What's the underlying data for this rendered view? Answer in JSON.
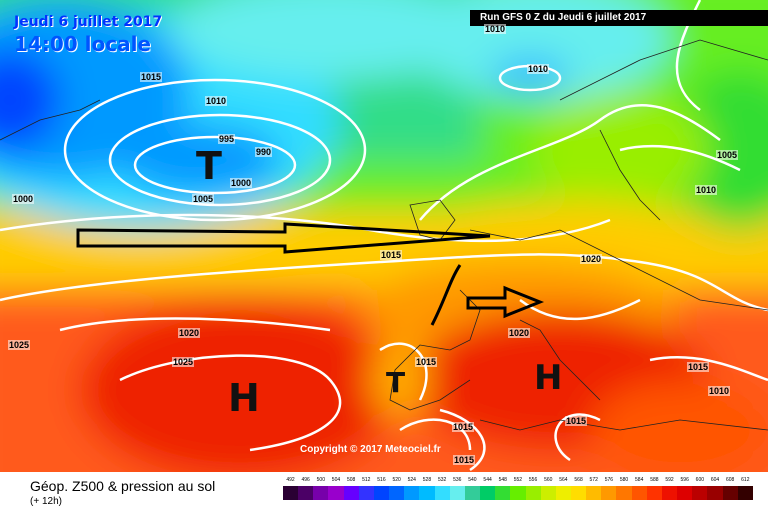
{
  "header": {
    "date": "Jeudi 6 juillet 2017",
    "time": "14:00 locale",
    "run": "Run GFS 0 Z du Jeudi 6 juillet 2017"
  },
  "map": {
    "copyright": "Copyright © 2017 Meteociel.fr",
    "isobars": [
      "1010",
      "1015",
      "1010",
      "995",
      "990",
      "1000",
      "1005",
      "1000",
      "1010",
      "1005",
      "1010",
      "1015",
      "1020",
      "1020",
      "1025",
      "1025",
      "1015",
      "1015",
      "1020",
      "1015",
      "1015",
      "1010",
      "1015"
    ],
    "symbols": {
      "low_1": "T",
      "low_2": "T",
      "high_1": "H",
      "high_2": "H"
    }
  },
  "legend": {
    "title": "Géop. Z500 & pression au sol",
    "subtitle": "(+ 12h)",
    "scale": [
      "492",
      "496",
      "500",
      "504",
      "508",
      "512",
      "516",
      "520",
      "524",
      "528",
      "532",
      "536",
      "540",
      "544",
      "548",
      "552",
      "556",
      "560",
      "564",
      "568",
      "572",
      "576",
      "580",
      "584",
      "588",
      "592",
      "596",
      "600",
      "604",
      "608",
      "612"
    ],
    "colors": [
      "#2a0033",
      "#4b0066",
      "#7700aa",
      "#9900cc",
      "#6600ff",
      "#3333ff",
      "#0044ff",
      "#0066ff",
      "#0099ff",
      "#00bbff",
      "#33ddff",
      "#66eeee",
      "#33cc99",
      "#00cc66",
      "#33dd33",
      "#66ee00",
      "#99ee00",
      "#ccee00",
      "#eeee00",
      "#ffdd00",
      "#ffbb00",
      "#ff9900",
      "#ff7700",
      "#ff5500",
      "#ff3300",
      "#ee1100",
      "#dd0000",
      "#bb0000",
      "#990000",
      "#660000",
      "#330000"
    ]
  }
}
